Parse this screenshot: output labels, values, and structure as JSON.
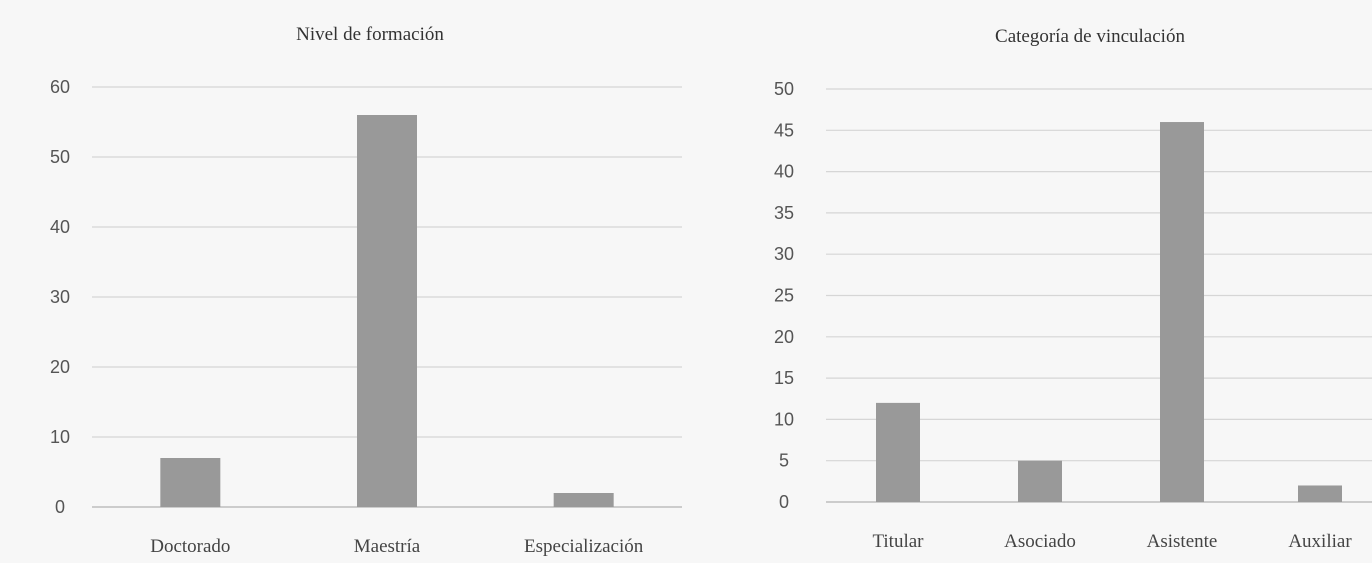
{
  "chart_data": [
    {
      "type": "bar",
      "title": "Nivel de formación",
      "xlabel": "",
      "ylabel": "",
      "categories": [
        "Doctorado",
        "Maestría",
        "Especialización"
      ],
      "values": [
        7,
        56,
        2
      ],
      "ylim": [
        0,
        60
      ],
      "yticks": [
        0,
        10,
        20,
        30,
        40,
        50,
        60
      ],
      "grid": true,
      "legend": "none",
      "bar_color": "#999999"
    },
    {
      "type": "bar",
      "title": "Categoría de vinculación",
      "xlabel": "",
      "ylabel": "",
      "categories": [
        "Titular",
        "Asociado",
        "Asistente",
        "Auxiliar"
      ],
      "values": [
        12,
        5,
        46,
        2
      ],
      "ylim": [
        0,
        50
      ],
      "yticks": [
        0,
        5,
        10,
        15,
        20,
        25,
        30,
        35,
        40,
        45,
        50
      ],
      "grid": true,
      "legend": "none",
      "bar_color": "#999999"
    }
  ]
}
